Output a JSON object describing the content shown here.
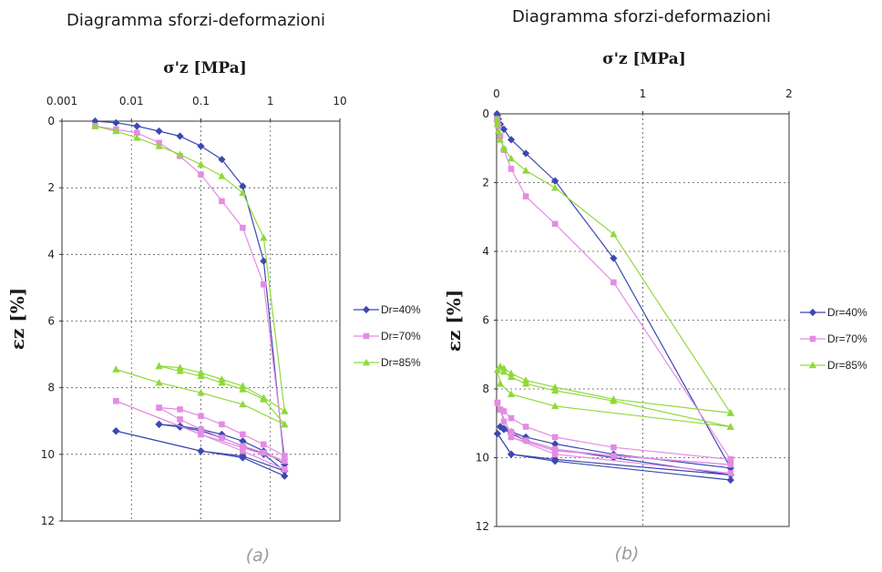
{
  "captions": [
    "(a)",
    "(b)"
  ],
  "colors": {
    "dr40": "#3b48b0",
    "dr70": "#e38ce3",
    "dr85": "#8fd93a"
  },
  "chart_data": [
    {
      "type": "line",
      "title": "Diagramma sforzi-deformazioni",
      "xlabel": "σ'z [MPa]",
      "ylabel": "εz [%]",
      "xscale": "log",
      "xlim": [
        0.001,
        10
      ],
      "ylim": [
        12,
        0
      ],
      "xticks": [
        0.001,
        0.01,
        0.1,
        1,
        10
      ],
      "xtick_labels": [
        "0.001",
        "0.01",
        "0.1",
        "1",
        "10"
      ],
      "yticks": [
        0,
        2,
        4,
        6,
        8,
        10,
        12
      ],
      "ytick_labels": [
        "0",
        "2",
        "4",
        "6",
        "8",
        "10",
        "12"
      ],
      "x_axis_position": "top",
      "grid": true,
      "legend_position": "right",
      "series": [
        {
          "name": "Dr=40%",
          "marker": "diamond",
          "color_key": "dr40",
          "segments": [
            [
              [
                0.003,
                0.0
              ],
              [
                0.006,
                0.05
              ],
              [
                0.012,
                0.15
              ],
              [
                0.025,
                0.3
              ],
              [
                0.05,
                0.45
              ],
              [
                0.1,
                0.75
              ],
              [
                0.2,
                1.15
              ],
              [
                0.4,
                1.95
              ],
              [
                0.8,
                4.2
              ],
              [
                1.6,
                10.3
              ]
            ],
            [
              [
                1.6,
                10.3
              ],
              [
                0.8,
                9.9
              ],
              [
                0.4,
                9.6
              ],
              [
                0.2,
                9.4
              ],
              [
                0.1,
                9.25
              ],
              [
                0.05,
                9.15
              ],
              [
                0.025,
                9.1
              ]
            ],
            [
              [
                0.025,
                9.1
              ],
              [
                0.05,
                9.18
              ],
              [
                0.1,
                9.3
              ],
              [
                0.2,
                9.5
              ],
              [
                0.4,
                9.75
              ],
              [
                0.8,
                10.0
              ],
              [
                1.6,
                10.5
              ]
            ],
            [
              [
                1.6,
                10.5
              ],
              [
                0.4,
                10.05
              ],
              [
                0.1,
                9.9
              ],
              [
                0.006,
                9.3
              ]
            ],
            [
              [
                0.006,
                9.3
              ],
              [
                0.1,
                9.9
              ],
              [
                0.4,
                10.1
              ],
              [
                1.6,
                10.65
              ]
            ]
          ]
        },
        {
          "name": "Dr=70%",
          "marker": "square",
          "color_key": "dr70",
          "segments": [
            [
              [
                0.003,
                0.15
              ],
              [
                0.006,
                0.25
              ],
              [
                0.012,
                0.35
              ],
              [
                0.025,
                0.65
              ],
              [
                0.05,
                1.05
              ],
              [
                0.1,
                1.6
              ],
              [
                0.2,
                2.4
              ],
              [
                0.4,
                3.2
              ],
              [
                0.8,
                4.9
              ],
              [
                1.6,
                10.05
              ]
            ],
            [
              [
                1.6,
                10.05
              ],
              [
                0.8,
                9.7
              ],
              [
                0.4,
                9.4
              ],
              [
                0.2,
                9.1
              ],
              [
                0.1,
                8.85
              ],
              [
                0.05,
                8.65
              ],
              [
                0.025,
                8.6
              ]
            ],
            [
              [
                0.025,
                8.6
              ],
              [
                0.05,
                8.95
              ],
              [
                0.1,
                9.25
              ],
              [
                0.2,
                9.5
              ],
              [
                0.4,
                9.75
              ],
              [
                0.8,
                9.95
              ],
              [
                1.6,
                10.2
              ]
            ],
            [
              [
                1.6,
                10.2
              ],
              [
                0.4,
                9.8
              ],
              [
                0.1,
                9.4
              ],
              [
                0.006,
                8.4
              ]
            ],
            [
              [
                0.006,
                8.4
              ],
              [
                0.1,
                9.4
              ],
              [
                0.4,
                9.9
              ],
              [
                1.6,
                10.45
              ]
            ]
          ]
        },
        {
          "name": "Dr=85%",
          "marker": "triangle",
          "color_key": "dr85",
          "segments": [
            [
              [
                0.003,
                0.15
              ],
              [
                0.006,
                0.3
              ],
              [
                0.012,
                0.5
              ],
              [
                0.025,
                0.75
              ],
              [
                0.05,
                1.0
              ],
              [
                0.1,
                1.3
              ],
              [
                0.2,
                1.65
              ],
              [
                0.4,
                2.15
              ],
              [
                0.8,
                3.5
              ],
              [
                1.6,
                8.7
              ]
            ],
            [
              [
                1.6,
                8.7
              ],
              [
                0.8,
                8.3
              ],
              [
                0.4,
                7.95
              ],
              [
                0.2,
                7.75
              ],
              [
                0.1,
                7.55
              ],
              [
                0.05,
                7.4
              ],
              [
                0.025,
                7.35
              ]
            ],
            [
              [
                0.025,
                7.35
              ],
              [
                0.05,
                7.5
              ],
              [
                0.1,
                7.65
              ],
              [
                0.2,
                7.85
              ],
              [
                0.4,
                8.05
              ],
              [
                0.8,
                8.35
              ],
              [
                1.6,
                9.1
              ]
            ],
            [
              [
                1.6,
                9.1
              ],
              [
                0.4,
                8.5
              ],
              [
                0.1,
                8.15
              ],
              [
                0.025,
                7.85
              ],
              [
                0.006,
                7.45
              ]
            ]
          ]
        }
      ]
    },
    {
      "type": "line",
      "title": "Diagramma sforzi-deformazioni",
      "xlabel": "σ'z [MPa]",
      "ylabel": "εz [%]",
      "xscale": "linear",
      "xlim": [
        0,
        2
      ],
      "ylim": [
        12,
        0
      ],
      "xticks": [
        0,
        1,
        2
      ],
      "xtick_labels": [
        "0",
        "1",
        "2"
      ],
      "yticks": [
        0,
        2,
        4,
        6,
        8,
        10,
        12
      ],
      "ytick_labels": [
        "0",
        "2",
        "4",
        "6",
        "8",
        "10",
        "12"
      ],
      "x_axis_position": "top",
      "grid": true,
      "legend_position": "right",
      "series": [
        {
          "name": "Dr=40%",
          "marker": "diamond",
          "color_key": "dr40",
          "segments": [
            [
              [
                0.003,
                0.0
              ],
              [
                0.006,
                0.05
              ],
              [
                0.012,
                0.15
              ],
              [
                0.025,
                0.3
              ],
              [
                0.05,
                0.45
              ],
              [
                0.1,
                0.75
              ],
              [
                0.2,
                1.15
              ],
              [
                0.4,
                1.95
              ],
              [
                0.8,
                4.2
              ],
              [
                1.6,
                10.3
              ]
            ],
            [
              [
                1.6,
                10.3
              ],
              [
                0.8,
                9.9
              ],
              [
                0.4,
                9.6
              ],
              [
                0.2,
                9.4
              ],
              [
                0.1,
                9.25
              ],
              [
                0.05,
                9.15
              ],
              [
                0.025,
                9.1
              ]
            ],
            [
              [
                0.025,
                9.1
              ],
              [
                0.05,
                9.18
              ],
              [
                0.1,
                9.3
              ],
              [
                0.2,
                9.5
              ],
              [
                0.4,
                9.75
              ],
              [
                0.8,
                10.0
              ],
              [
                1.6,
                10.5
              ]
            ],
            [
              [
                1.6,
                10.5
              ],
              [
                0.4,
                10.05
              ],
              [
                0.1,
                9.9
              ],
              [
                0.006,
                9.3
              ]
            ],
            [
              [
                0.006,
                9.3
              ],
              [
                0.1,
                9.9
              ],
              [
                0.4,
                10.1
              ],
              [
                1.6,
                10.65
              ]
            ]
          ]
        },
        {
          "name": "Dr=70%",
          "marker": "square",
          "color_key": "dr70",
          "segments": [
            [
              [
                0.003,
                0.15
              ],
              [
                0.006,
                0.25
              ],
              [
                0.012,
                0.35
              ],
              [
                0.025,
                0.65
              ],
              [
                0.05,
                1.05
              ],
              [
                0.1,
                1.6
              ],
              [
                0.2,
                2.4
              ],
              [
                0.4,
                3.2
              ],
              [
                0.8,
                4.9
              ],
              [
                1.6,
                10.05
              ]
            ],
            [
              [
                1.6,
                10.05
              ],
              [
                0.8,
                9.7
              ],
              [
                0.4,
                9.4
              ],
              [
                0.2,
                9.1
              ],
              [
                0.1,
                8.85
              ],
              [
                0.05,
                8.65
              ],
              [
                0.025,
                8.6
              ]
            ],
            [
              [
                0.025,
                8.6
              ],
              [
                0.05,
                8.95
              ],
              [
                0.1,
                9.25
              ],
              [
                0.2,
                9.5
              ],
              [
                0.4,
                9.75
              ],
              [
                0.8,
                9.95
              ],
              [
                1.6,
                10.2
              ]
            ],
            [
              [
                1.6,
                10.2
              ],
              [
                0.4,
                9.8
              ],
              [
                0.1,
                9.4
              ],
              [
                0.006,
                8.4
              ]
            ],
            [
              [
                0.006,
                8.4
              ],
              [
                0.1,
                9.4
              ],
              [
                0.4,
                9.9
              ],
              [
                1.6,
                10.45
              ]
            ]
          ]
        },
        {
          "name": "Dr=85%",
          "marker": "triangle",
          "color_key": "dr85",
          "segments": [
            [
              [
                0.003,
                0.15
              ],
              [
                0.006,
                0.3
              ],
              [
                0.012,
                0.5
              ],
              [
                0.025,
                0.75
              ],
              [
                0.05,
                1.0
              ],
              [
                0.1,
                1.3
              ],
              [
                0.2,
                1.65
              ],
              [
                0.4,
                2.15
              ],
              [
                0.8,
                3.5
              ],
              [
                1.6,
                8.7
              ]
            ],
            [
              [
                1.6,
                8.7
              ],
              [
                0.8,
                8.3
              ],
              [
                0.4,
                7.95
              ],
              [
                0.2,
                7.75
              ],
              [
                0.1,
                7.55
              ],
              [
                0.05,
                7.4
              ],
              [
                0.025,
                7.35
              ]
            ],
            [
              [
                0.025,
                7.35
              ],
              [
                0.05,
                7.5
              ],
              [
                0.1,
                7.65
              ],
              [
                0.2,
                7.85
              ],
              [
                0.4,
                8.05
              ],
              [
                0.8,
                8.35
              ],
              [
                1.6,
                9.1
              ]
            ],
            [
              [
                1.6,
                9.1
              ],
              [
                0.4,
                8.5
              ],
              [
                0.1,
                8.15
              ],
              [
                0.025,
                7.85
              ],
              [
                0.006,
                7.45
              ]
            ]
          ]
        }
      ]
    }
  ]
}
